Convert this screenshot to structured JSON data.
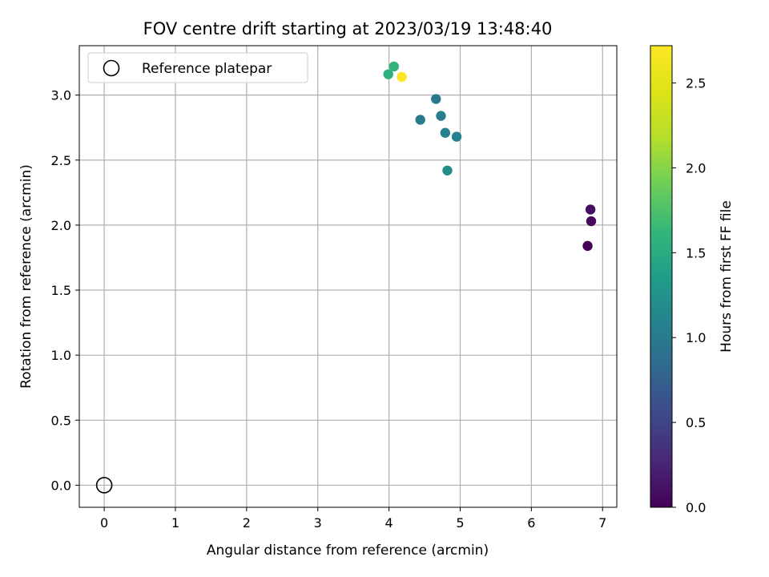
{
  "chart_data": {
    "type": "scatter",
    "title": "FOV centre drift starting at 2023/03/19 13:48:40",
    "xlabel": "Angular distance from reference (arcmin)",
    "ylabel": "Rotation from reference (arcmin)",
    "xlim": [
      -0.35,
      7.2
    ],
    "ylim": [
      -0.17,
      3.38
    ],
    "xticks": [
      0,
      1,
      2,
      3,
      4,
      5,
      6,
      7
    ],
    "yticks": [
      0.0,
      0.5,
      1.0,
      1.5,
      2.0,
      2.5,
      3.0
    ],
    "grid": true,
    "legend": {
      "position": "top-left",
      "entries": [
        "Reference platepar"
      ]
    },
    "colorbar": {
      "label": "Hours from first FF file",
      "range": [
        0.0,
        2.72
      ],
      "ticks": [
        0.0,
        0.5,
        1.0,
        1.5,
        2.0,
        2.5
      ],
      "colormap": "viridis"
    },
    "series": [
      {
        "name": "Reference platepar",
        "marker": "open-circle",
        "points": [
          {
            "x": 0.0,
            "y": 0.0
          }
        ]
      },
      {
        "marker": "filled-circle",
        "points": [
          {
            "x": 6.79,
            "y": 1.84,
            "hours": 0.0
          },
          {
            "x": 6.84,
            "y": 2.03,
            "hours": 0.05
          },
          {
            "x": 6.83,
            "y": 2.12,
            "hours": 0.1
          },
          {
            "x": 4.44,
            "y": 2.81,
            "hours": 1.0
          },
          {
            "x": 4.66,
            "y": 2.97,
            "hours": 1.0
          },
          {
            "x": 4.73,
            "y": 2.84,
            "hours": 1.05
          },
          {
            "x": 4.79,
            "y": 2.71,
            "hours": 1.1
          },
          {
            "x": 4.95,
            "y": 2.68,
            "hours": 1.08
          },
          {
            "x": 4.82,
            "y": 2.42,
            "hours": 1.2
          },
          {
            "x": 3.99,
            "y": 3.16,
            "hours": 1.55
          },
          {
            "x": 4.07,
            "y": 3.22,
            "hours": 1.6
          },
          {
            "x": 4.18,
            "y": 3.14,
            "hours": 2.72
          }
        ]
      }
    ]
  }
}
